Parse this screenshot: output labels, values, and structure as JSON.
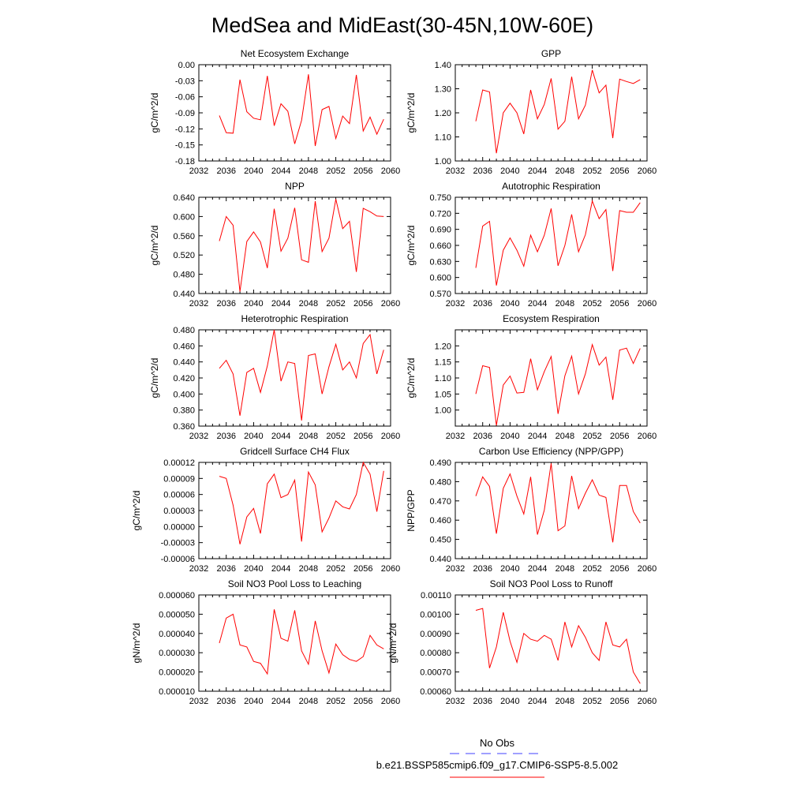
{
  "title": "MedSea and MidEast(30-45N,10W-60E)",
  "legend": {
    "entries": [
      {
        "label": "No Obs",
        "color": "#4040ff",
        "dash": true
      },
      {
        "label": "b.e21.BSSP585cmip6.f09_g17.CMIP6-SSP5-8.5.002",
        "color": "#ff0000",
        "dash": false
      }
    ]
  },
  "chart_data": [
    {
      "type": "line",
      "title": "Net Ecosystem Exchange",
      "ylabel": "gC/m^2/d",
      "xlim": [
        2032,
        2060
      ],
      "xticks": [
        "2032",
        "2036",
        "2040",
        "2044",
        "2048",
        "2052",
        "2056",
        "2060"
      ],
      "ylim": [
        -0.18,
        0.0
      ],
      "yticks": [
        "0.00",
        "-0.03",
        "-0.06",
        "-0.09",
        "-0.12",
        "-0.15",
        "-0.18"
      ],
      "x": [
        2035,
        2036,
        2037,
        2038,
        2039,
        2040,
        2041,
        2042,
        2043,
        2044,
        2045,
        2046,
        2047,
        2048,
        2049,
        2050,
        2051,
        2052,
        2053,
        2054,
        2055,
        2056,
        2057,
        2058,
        2059
      ],
      "series": [
        {
          "values": [
            -0.095,
            -0.127,
            -0.128,
            -0.028,
            -0.088,
            -0.1,
            -0.103,
            -0.021,
            -0.114,
            -0.073,
            -0.087,
            -0.148,
            -0.104,
            -0.018,
            -0.152,
            -0.084,
            -0.078,
            -0.138,
            -0.096,
            -0.11,
            -0.019,
            -0.124,
            -0.098,
            -0.13,
            -0.102
          ]
        }
      ]
    },
    {
      "type": "line",
      "title": "GPP",
      "ylabel": "gC/m^2/d",
      "xlim": [
        2032,
        2060
      ],
      "xticks": [
        "2032",
        "2036",
        "2040",
        "2044",
        "2048",
        "2052",
        "2056",
        "2060"
      ],
      "ylim": [
        1.0,
        1.4
      ],
      "yticks": [
        "1.40",
        "1.30",
        "1.20",
        "1.10",
        "1.00"
      ],
      "x": [
        2035,
        2036,
        2037,
        2038,
        2039,
        2040,
        2041,
        2042,
        2043,
        2044,
        2045,
        2046,
        2047,
        2048,
        2049,
        2050,
        2051,
        2052,
        2053,
        2054,
        2055,
        2056,
        2057,
        2058,
        2059
      ],
      "series": [
        {
          "values": [
            1.165,
            1.295,
            1.287,
            1.032,
            1.2,
            1.24,
            1.2,
            1.112,
            1.295,
            1.175,
            1.235,
            1.343,
            1.132,
            1.165,
            1.35,
            1.175,
            1.232,
            1.378,
            1.283,
            1.315,
            1.095,
            1.34,
            1.33,
            1.322,
            1.338
          ]
        }
      ]
    },
    {
      "type": "line",
      "title": "NPP",
      "ylabel": "gC/m^2/d",
      "xlim": [
        2032,
        2060
      ],
      "xticks": [
        "2032",
        "2036",
        "2040",
        "2044",
        "2048",
        "2052",
        "2056",
        "2060"
      ],
      "ylim": [
        0.44,
        0.64
      ],
      "yticks": [
        "0.640",
        "0.600",
        "0.560",
        "0.520",
        "0.480",
        "0.440"
      ],
      "x": [
        2035,
        2036,
        2037,
        2038,
        2039,
        2040,
        2041,
        2042,
        2043,
        2044,
        2045,
        2046,
        2047,
        2048,
        2049,
        2050,
        2051,
        2052,
        2053,
        2054,
        2055,
        2056,
        2057,
        2058,
        2059
      ],
      "series": [
        {
          "values": [
            0.549,
            0.6,
            0.582,
            0.444,
            0.548,
            0.568,
            0.547,
            0.493,
            0.616,
            0.528,
            0.555,
            0.618,
            0.51,
            0.505,
            0.632,
            0.527,
            0.555,
            0.636,
            0.575,
            0.59,
            0.485,
            0.617,
            0.61,
            0.601,
            0.6
          ]
        }
      ]
    },
    {
      "type": "line",
      "title": "Autotrophic Respiration",
      "ylabel": "gC/m^2/d",
      "xlim": [
        2032,
        2060
      ],
      "xticks": [
        "2032",
        "2036",
        "2040",
        "2044",
        "2048",
        "2052",
        "2056",
        "2060"
      ],
      "ylim": [
        0.57,
        0.75
      ],
      "yticks": [
        "0.750",
        "0.720",
        "0.690",
        "0.660",
        "0.630",
        "0.600",
        "0.570"
      ],
      "x": [
        2035,
        2036,
        2037,
        2038,
        2039,
        2040,
        2041,
        2042,
        2043,
        2044,
        2045,
        2046,
        2047,
        2048,
        2049,
        2050,
        2051,
        2052,
        2053,
        2054,
        2055,
        2056,
        2057,
        2058,
        2059
      ],
      "series": [
        {
          "values": [
            0.618,
            0.696,
            0.705,
            0.585,
            0.651,
            0.674,
            0.651,
            0.621,
            0.679,
            0.648,
            0.679,
            0.729,
            0.622,
            0.66,
            0.718,
            0.648,
            0.68,
            0.743,
            0.71,
            0.727,
            0.612,
            0.725,
            0.722,
            0.722,
            0.74
          ]
        }
      ]
    },
    {
      "type": "line",
      "title": "Heterotrophic Respiration",
      "ylabel": "gC/m^2/d",
      "xlim": [
        2032,
        2060
      ],
      "xticks": [
        "2032",
        "2036",
        "2040",
        "2044",
        "2048",
        "2052",
        "2056",
        "2060"
      ],
      "ylim": [
        0.36,
        0.48
      ],
      "yticks": [
        "0.480",
        "0.460",
        "0.440",
        "0.420",
        "0.400",
        "0.380",
        "0.360"
      ],
      "x": [
        2035,
        2036,
        2037,
        2038,
        2039,
        2040,
        2041,
        2042,
        2043,
        2044,
        2045,
        2046,
        2047,
        2048,
        2049,
        2050,
        2051,
        2052,
        2053,
        2054,
        2055,
        2056,
        2057,
        2058,
        2059
      ],
      "series": [
        {
          "values": [
            0.432,
            0.442,
            0.425,
            0.373,
            0.427,
            0.432,
            0.402,
            0.435,
            0.48,
            0.416,
            0.44,
            0.438,
            0.367,
            0.448,
            0.45,
            0.4,
            0.434,
            0.462,
            0.43,
            0.44,
            0.42,
            0.463,
            0.474,
            0.425,
            0.455
          ]
        }
      ]
    },
    {
      "type": "line",
      "title": "Ecosystem Respiration",
      "ylabel": "gC/m^2/d",
      "xlim": [
        2032,
        2060
      ],
      "xticks": [
        "2032",
        "2036",
        "2040",
        "2044",
        "2048",
        "2052",
        "2056",
        "2060"
      ],
      "ylim": [
        0.95,
        1.25
      ],
      "yticks": [
        "1.20",
        "1.15",
        "1.10",
        "1.05",
        "1.00"
      ],
      "x": [
        2035,
        2036,
        2037,
        2038,
        2039,
        2040,
        2041,
        2042,
        2043,
        2044,
        2045,
        2046,
        2047,
        2048,
        2049,
        2050,
        2051,
        2052,
        2053,
        2054,
        2055,
        2056,
        2057,
        2058,
        2059
      ],
      "series": [
        {
          "values": [
            1.05,
            1.138,
            1.133,
            0.952,
            1.078,
            1.106,
            1.053,
            1.055,
            1.16,
            1.063,
            1.12,
            1.167,
            0.988,
            1.107,
            1.168,
            1.05,
            1.113,
            1.204,
            1.14,
            1.165,
            1.032,
            1.187,
            1.193,
            1.145,
            1.192
          ]
        }
      ]
    },
    {
      "type": "line",
      "title": "Gridcell Surface CH4 Flux",
      "ylabel": "gC/m^2/d",
      "xlim": [
        2032,
        2060
      ],
      "xticks": [
        "2032",
        "2036",
        "2040",
        "2044",
        "2048",
        "2052",
        "2056",
        "2060"
      ],
      "ylim": [
        -6e-05,
        0.00012
      ],
      "yticks": [
        "0.00012",
        "0.00009",
        "0.00006",
        "0.00003",
        "0.00000",
        "-0.00003",
        "-0.00006"
      ],
      "x": [
        2035,
        2036,
        2037,
        2038,
        2039,
        2040,
        2041,
        2042,
        2043,
        2044,
        2045,
        2046,
        2047,
        2048,
        2049,
        2050,
        2051,
        2052,
        2053,
        2054,
        2055,
        2056,
        2057,
        2058,
        2059
      ],
      "series": [
        {
          "values": [
            9.4e-05,
            9e-05,
            4e-05,
            -3.3e-05,
            1.8e-05,
            3.4e-05,
            -1.3e-05,
            8e-05,
            9.8e-05,
            5.4e-05,
            6e-05,
            8.7e-05,
            -2.8e-05,
            0.000102,
            7.8e-05,
            -1e-05,
            1.6e-05,
            4.8e-05,
            3.7e-05,
            3.3e-05,
            6e-05,
            0.00012,
            9.8e-05,
            2.8e-05,
            0.000104
          ]
        }
      ]
    },
    {
      "type": "line",
      "title": "Carbon Use Efficiency (NPP/GPP)",
      "ylabel": "NPP/GPP",
      "xlim": [
        2032,
        2060
      ],
      "xticks": [
        "2032",
        "2036",
        "2040",
        "2044",
        "2048",
        "2052",
        "2056",
        "2060"
      ],
      "ylim": [
        0.44,
        0.49
      ],
      "yticks": [
        "0.490",
        "0.480",
        "0.470",
        "0.460",
        "0.450",
        "0.440"
      ],
      "x": [
        2035,
        2036,
        2037,
        2038,
        2039,
        2040,
        2041,
        2042,
        2043,
        2044,
        2045,
        2046,
        2047,
        2048,
        2049,
        2050,
        2051,
        2052,
        2053,
        2054,
        2055,
        2056,
        2057,
        2058,
        2059
      ],
      "series": [
        {
          "values": [
            0.4725,
            0.4825,
            0.4775,
            0.453,
            0.4765,
            0.484,
            0.4725,
            0.4632,
            0.4825,
            0.4525,
            0.4652,
            0.4895,
            0.4545,
            0.457,
            0.483,
            0.466,
            0.474,
            0.481,
            0.473,
            0.4718,
            0.4485,
            0.478,
            0.478,
            0.4645,
            0.4585
          ]
        }
      ]
    },
    {
      "type": "line",
      "title": "Soil NO3 Pool Loss to Leaching",
      "ylabel": "gN/m^2/d",
      "xlim": [
        2032,
        2060
      ],
      "xticks": [
        "2032",
        "2036",
        "2040",
        "2044",
        "2048",
        "2052",
        "2056",
        "2060"
      ],
      "ylim": [
        1e-05,
        6e-05
      ],
      "yticks": [
        "0.000060",
        "0.000050",
        "0.000040",
        "0.000030",
        "0.000020",
        "0.000010"
      ],
      "x": [
        2035,
        2036,
        2037,
        2038,
        2039,
        2040,
        2041,
        2042,
        2043,
        2044,
        2045,
        2046,
        2047,
        2048,
        2049,
        2050,
        2051,
        2052,
        2053,
        2054,
        2055,
        2056,
        2057,
        2058,
        2059
      ],
      "series": [
        {
          "values": [
            3.5e-05,
            4.8e-05,
            5e-05,
            3.4e-05,
            3.3e-05,
            2.55e-05,
            2.45e-05,
            1.9e-05,
            5.25e-05,
            3.75e-05,
            3.6e-05,
            5.2e-05,
            3.1e-05,
            2.4e-05,
            4.65e-05,
            3.1e-05,
            1.95e-05,
            3.45e-05,
            2.9e-05,
            2.65e-05,
            2.55e-05,
            2.8e-05,
            3.9e-05,
            3.4e-05,
            3.2e-05
          ]
        }
      ]
    },
    {
      "type": "line",
      "title": "Soil NO3 Pool Loss to Runoff",
      "ylabel": "gN/m^2/d",
      "xlim": [
        2032,
        2060
      ],
      "xticks": [
        "2032",
        "2036",
        "2040",
        "2044",
        "2048",
        "2052",
        "2056",
        "2060"
      ],
      "ylim": [
        0.0006,
        0.0011
      ],
      "yticks": [
        "0.00110",
        "0.00100",
        "0.00090",
        "0.00080",
        "0.00070",
        "0.00060"
      ],
      "x": [
        2035,
        2036,
        2037,
        2038,
        2039,
        2040,
        2041,
        2042,
        2043,
        2044,
        2045,
        2046,
        2047,
        2048,
        2049,
        2050,
        2051,
        2052,
        2053,
        2054,
        2055,
        2056,
        2057,
        2058,
        2059
      ],
      "series": [
        {
          "values": [
            0.00102,
            0.00103,
            0.00072,
            0.00083,
            0.00101,
            0.00086,
            0.00075,
            0.0009,
            0.00087,
            0.00086,
            0.00089,
            0.00087,
            0.00076,
            0.00096,
            0.00083,
            0.00094,
            0.00088,
            0.0008,
            0.00076,
            0.00096,
            0.00084,
            0.00083,
            0.00087,
            0.0007,
            0.00064
          ]
        }
      ]
    }
  ]
}
